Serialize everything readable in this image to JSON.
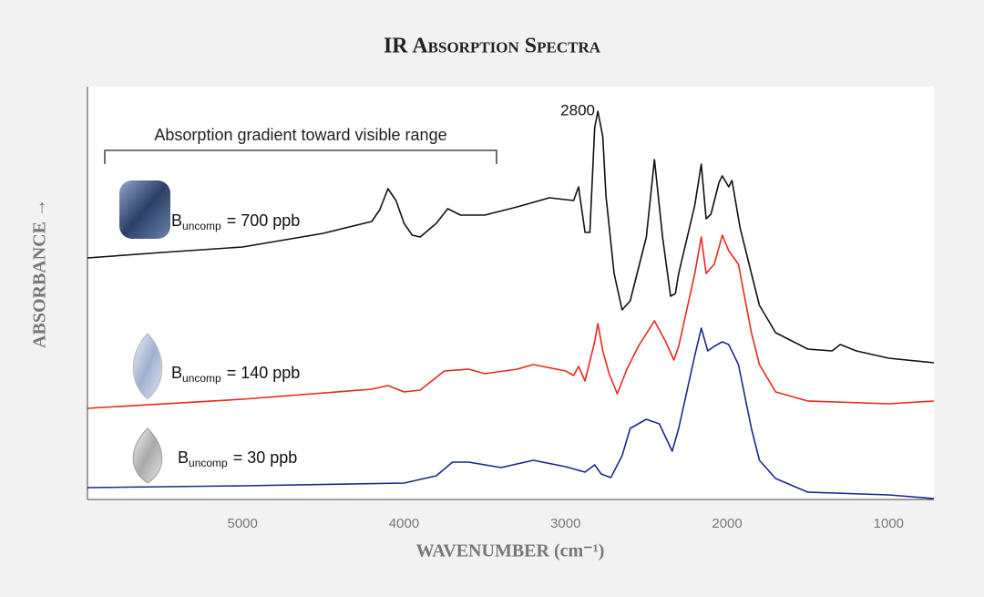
{
  "chart_data": {
    "type": "line",
    "title": "IR Absorption Spectra",
    "x_label": "WAVENUMBER (cm⁻¹)",
    "y_label": "ABSORBANCE →",
    "annotations": [
      "Absorption gradient toward visible range",
      "2800"
    ],
    "xlim": [
      5960,
      720
    ],
    "ylim": [
      0,
      453
    ],
    "xticks": [
      5000,
      4000,
      3000,
      2000,
      1000
    ],
    "grid": false,
    "series": [
      {
        "label_base": "B",
        "label_sub": "uncomp",
        "label_text": "= 700 ppb",
        "color": "#111111",
        "x": [
          5960,
          5500,
          5000,
          4500,
          4200,
          4150,
          4100,
          4050,
          4000,
          3950,
          3900,
          3800,
          3730,
          3650,
          3500,
          3300,
          3100,
          2950,
          2920,
          2880,
          2850,
          2820,
          2800,
          2770,
          2750,
          2700,
          2650,
          2600,
          2500,
          2450,
          2400,
          2350,
          2320,
          2300,
          2200,
          2160,
          2130,
          2100,
          2050,
          2030,
          1990,
          1970,
          1920,
          1850,
          1800,
          1700,
          1500,
          1350,
          1300,
          1200,
          1000,
          720
        ],
        "values": [
          265,
          271,
          277,
          292,
          305,
          318,
          341,
          328,
          303,
          290,
          288,
          303,
          319,
          312,
          312,
          321,
          331,
          328,
          343,
          293,
          293,
          408,
          426,
          398,
          333,
          248,
          208,
          218,
          288,
          373,
          288,
          223,
          226,
          248,
          323,
          368,
          308,
          313,
          348,
          355,
          343,
          350,
          298,
          248,
          213,
          183,
          165,
          163,
          170,
          163,
          155,
          150
        ]
      },
      {
        "label_base": "B",
        "label_sub": "uncomp",
        "label_text": "= 140 ppb",
        "color": "#e8281e",
        "x": [
          5960,
          5000,
          4200,
          4100,
          4000,
          3900,
          3750,
          3600,
          3500,
          3300,
          3200,
          3000,
          2950,
          2920,
          2880,
          2820,
          2800,
          2770,
          2730,
          2680,
          2620,
          2550,
          2450,
          2380,
          2330,
          2300,
          2200,
          2160,
          2130,
          2080,
          2030,
          1990,
          1930,
          1850,
          1800,
          1700,
          1500,
          1000,
          720
        ],
        "values": [
          100,
          110,
          121,
          125,
          118,
          120,
          141,
          143,
          138,
          143,
          148,
          141,
          136,
          146,
          130,
          173,
          193,
          163,
          138,
          116,
          143,
          168,
          196,
          173,
          153,
          168,
          248,
          288,
          248,
          258,
          290,
          273,
          258,
          183,
          148,
          118,
          108,
          105,
          108
        ]
      },
      {
        "label_base": "B",
        "label_sub": "uncomp",
        "label_text": "= 30 ppb",
        "color": "#1a2a8c",
        "x": [
          5960,
          5000,
          4000,
          3800,
          3700,
          3600,
          3400,
          3200,
          3000,
          2880,
          2820,
          2780,
          2720,
          2650,
          2600,
          2500,
          2420,
          2380,
          2340,
          2300,
          2200,
          2160,
          2120,
          2080,
          2030,
          1990,
          1930,
          1850,
          1800,
          1700,
          1500,
          1000,
          720
        ],
        "values": [
          13,
          15,
          18,
          26,
          41,
          41,
          35,
          43,
          36,
          30,
          38,
          28,
          24,
          48,
          78,
          88,
          83,
          68,
          53,
          78,
          158,
          188,
          163,
          168,
          173,
          170,
          148,
          78,
          43,
          23,
          8,
          5,
          1
        ]
      }
    ]
  }
}
